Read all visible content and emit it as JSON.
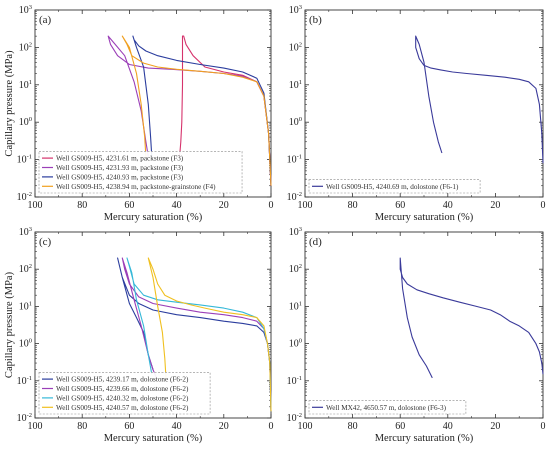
{
  "chart_data": [
    {
      "type": "line",
      "panel_label": "(a)",
      "xlabel": "Mercury saturation (%)",
      "ylabel": "Capillary pressure (MPa)",
      "xlim": [
        100,
        0
      ],
      "ylim": [
        0.01,
        1000
      ],
      "yscale": "log",
      "x_ticks": [
        "100",
        "80",
        "60",
        "40",
        "20",
        "0"
      ],
      "legend_position": "bottom-left",
      "series": [
        {
          "name": "Well GS009-H5, 4231.61 m, packstone (F3)",
          "color": "#d6336c",
          "x": [
            0,
            1,
            3,
            6,
            12,
            20,
            28,
            33,
            36,
            37,
            37.5,
            37.5,
            37.8,
            38.2,
            38.6,
            39
          ],
          "y": [
            0.02,
            0.5,
            5,
            12,
            18,
            22,
            30,
            60,
            120,
            200,
            200,
            10,
            1,
            0.3,
            0.15,
            0.12
          ]
        },
        {
          "name": "Well GS009-H5, 4231.93 m, packstone (F3)",
          "color": "#9b3fb8",
          "x": [
            0,
            1,
            3,
            6,
            12,
            20,
            30,
            42,
            52,
            60,
            65,
            68,
            69,
            69,
            66,
            62,
            58,
            55,
            53,
            52
          ],
          "y": [
            0.02,
            0.5,
            5,
            12,
            17,
            20,
            23,
            26,
            28,
            35,
            60,
            120,
            200,
            200,
            120,
            60,
            12,
            2,
            0.3,
            0.12
          ]
        },
        {
          "name": "Well GS009-H5, 4240.93 m, packstone (F3)",
          "color": "#2b3d9e",
          "x": [
            0,
            1,
            3,
            6,
            12,
            20,
            30,
            40,
            48,
            53,
            56,
            58,
            58.5,
            58.5,
            57,
            54,
            52,
            51,
            50.5
          ],
          "y": [
            0.02,
            0.5,
            6,
            15,
            22,
            28,
            35,
            45,
            60,
            80,
            110,
            160,
            200,
            200,
            100,
            30,
            3,
            0.4,
            0.12
          ]
        },
        {
          "name": "Well GS009-H5, 4238.94 m, packstone-grainstone (F4)",
          "color": "#f0a020",
          "x": [
            0,
            1,
            3,
            6,
            12,
            20,
            30,
            40,
            48,
            54,
            59,
            61,
            63,
            63,
            60,
            57,
            55,
            53.5,
            53
          ],
          "y": [
            0.02,
            0.5,
            5,
            12,
            16,
            20,
            23,
            26,
            30,
            38,
            60,
            120,
            200,
            200,
            100,
            20,
            3,
            0.4,
            0.12
          ]
        }
      ]
    },
    {
      "type": "line",
      "panel_label": "(b)",
      "xlabel": "Mercury saturation (%)",
      "ylabel": "",
      "xlim": [
        100,
        0
      ],
      "ylim": [
        0.01,
        1000
      ],
      "yscale": "log",
      "x_ticks": [
        "100",
        "80",
        "60",
        "40",
        "20",
        "0"
      ],
      "legend_position": "bottom-left",
      "series": [
        {
          "name": "Well GS009-H5, 4240.69 m, dolostone (F6-1)",
          "color": "#3a3a9a",
          "x": [
            0,
            0.5,
            1.5,
            3,
            6,
            10,
            16,
            24,
            32,
            38,
            43,
            47,
            50,
            52,
            53.5,
            53.5,
            52,
            50,
            48,
            46,
            44,
            42.5
          ],
          "y": [
            0.08,
            0.5,
            3,
            8,
            12,
            14,
            16,
            18,
            20,
            22,
            25,
            28,
            33,
            50,
            100,
            200,
            120,
            40,
            5,
            1,
            0.3,
            0.15
          ]
        }
      ]
    },
    {
      "type": "line",
      "panel_label": "(c)",
      "xlabel": "Mercury saturation (%)",
      "ylabel": "Capillary pressure (MPa)",
      "xlim": [
        100,
        0
      ],
      "ylim": [
        0.01,
        1000
      ],
      "yscale": "log",
      "x_ticks": [
        "100",
        "80",
        "60",
        "40",
        "20",
        "0"
      ],
      "legend_position": "bottom-left",
      "series": [
        {
          "name": "Well GS009-H5, 4239.17 m, dolostone (F6-2)",
          "color": "#2b3d9e",
          "x": [
            0,
            0.5,
            1.5,
            3,
            6,
            12,
            20,
            30,
            40,
            50,
            56,
            60,
            63,
            65,
            65,
            63,
            60,
            57,
            54,
            52,
            50
          ],
          "y": [
            0.015,
            0.3,
            1,
            2,
            3,
            3.5,
            4,
            5,
            6,
            8,
            12,
            20,
            60,
            200,
            200,
            60,
            12,
            5,
            2,
            0.5,
            0.2
          ]
        },
        {
          "name": "Well GS009-H5, 4239.66 m, dolostone (F6-2)",
          "color": "#9b3fb8",
          "x": [
            0,
            0.5,
            1.5,
            3,
            6,
            12,
            20,
            30,
            40,
            50,
            56,
            60,
            62,
            63,
            63,
            61,
            58,
            55,
            52,
            50,
            48.5
          ],
          "y": [
            0.015,
            0.3,
            1,
            2.5,
            4,
            5,
            6,
            7,
            9,
            12,
            18,
            40,
            100,
            200,
            200,
            80,
            15,
            3,
            0.5,
            0.2,
            0.12
          ]
        },
        {
          "name": "Well GS009-H5, 4240.32 m, dolostone (F6-2)",
          "color": "#35b8d8",
          "x": [
            0,
            0.5,
            1.5,
            3,
            6,
            12,
            20,
            30,
            40,
            48,
            54,
            58,
            60,
            61,
            61,
            59,
            57,
            54,
            52,
            50.5
          ],
          "y": [
            0.015,
            0.3,
            1,
            2.5,
            5,
            7,
            9,
            11,
            13,
            15,
            20,
            40,
            120,
            200,
            200,
            80,
            15,
            3,
            0.5,
            0.15
          ]
        },
        {
          "name": "Well GS009-H5, 4240.57 m, dolostone (F6-2)",
          "color": "#f0c020",
          "x": [
            0,
            0.5,
            1.5,
            3,
            6,
            12,
            20,
            28,
            34,
            40,
            45,
            48,
            50,
            52,
            52,
            50,
            48,
            46,
            45,
            44.5
          ],
          "y": [
            0.015,
            0.3,
            1,
            3,
            5,
            6,
            7,
            9,
            11,
            14,
            20,
            40,
            100,
            200,
            200,
            60,
            10,
            2,
            0.4,
            0.12
          ]
        }
      ]
    },
    {
      "type": "line",
      "panel_label": "(d)",
      "xlabel": "Mercury saturation (%)",
      "ylabel": "",
      "xlim": [
        100,
        0
      ],
      "ylim": [
        0.01,
        1000
      ],
      "yscale": "log",
      "x_ticks": [
        "100",
        "80",
        "60",
        "40",
        "20",
        "0"
      ],
      "legend_position": "bottom-left",
      "series": [
        {
          "name": "Well MX42, 4650.57 m, dolostone (F6-3)",
          "color": "#3a3a9a",
          "x": [
            0,
            0.5,
            1.5,
            3,
            6,
            10,
            14,
            18,
            22,
            28,
            35,
            42,
            48,
            53,
            57,
            59,
            60,
            60,
            59,
            57,
            55,
            52,
            49,
            46.5
          ],
          "y": [
            0.15,
            0.3,
            0.6,
            1,
            2,
            3,
            4,
            6,
            8,
            10,
            13,
            17,
            22,
            28,
            40,
            60,
            100,
            200,
            30,
            5,
            1.5,
            0.5,
            0.25,
            0.12
          ]
        }
      ]
    }
  ]
}
